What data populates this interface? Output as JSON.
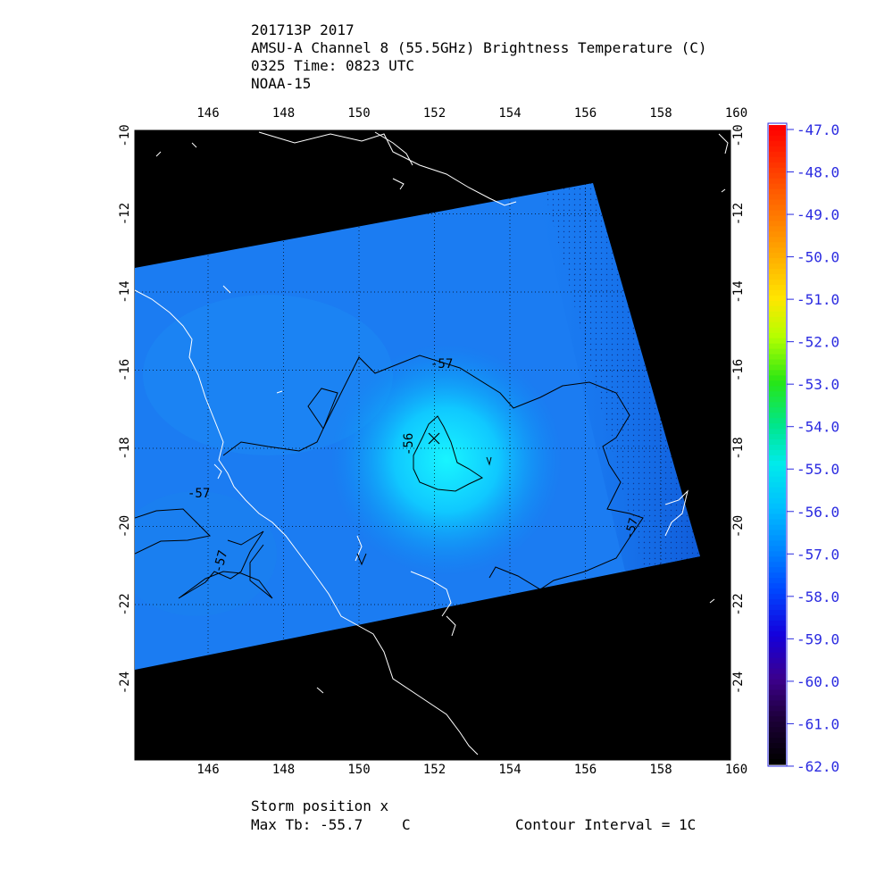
{
  "header": {
    "line1": "201713P 2017",
    "line2": "AMSU-A Channel 8 (55.5GHz) Brightness Temperature (C)",
    "line3": "0325 Time: 0823 UTC",
    "line4": "NOAA-15"
  },
  "map": {
    "lon_labels": [
      "146",
      "148",
      "150",
      "152",
      "154",
      "156",
      "158",
      "160"
    ],
    "lat_labels": [
      "-10",
      "-12",
      "-14",
      "-16",
      "-18",
      "-20",
      "-22",
      "-24"
    ],
    "storm_marker": "x",
    "contour_labels": [
      "-57",
      "-56",
      "-57",
      "-57",
      "-57"
    ]
  },
  "colorbar": {
    "ticks": [
      "-47.0",
      "-48.0",
      "-49.0",
      "-50.0",
      "-51.0",
      "-52.0",
      "-53.0",
      "-54.0",
      "-55.0",
      "-56.0",
      "-57.0",
      "-58.0",
      "-59.0",
      "-60.0",
      "-61.0",
      "-62.0"
    ],
    "tick_color": "#2a2ae0"
  },
  "footer": {
    "storm_position": "Storm position x",
    "max_tb_label": "Max Tb: -55.7",
    "max_tb_unit": "C",
    "contour_interval": "Contour Interval = 1C"
  }
}
